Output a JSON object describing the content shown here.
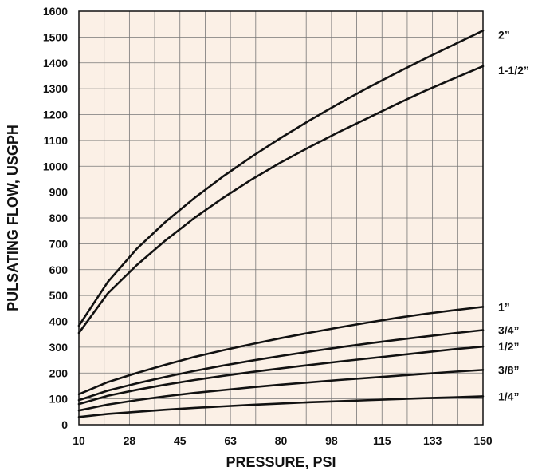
{
  "chart_data": {
    "type": "line",
    "title": "",
    "xlabel": "PRESSURE, PSI",
    "ylabel": "PULSATING FLOW, USGPH",
    "xlim": [
      10,
      150
    ],
    "ylim": [
      0,
      1600
    ],
    "x_tick_labels": [
      "10",
      "28",
      "45",
      "63",
      "80",
      "98",
      "115",
      "133",
      "150"
    ],
    "y_tick_labels": [
      "0",
      "100",
      "200",
      "300",
      "400",
      "500",
      "600",
      "700",
      "800",
      "900",
      "1000",
      "1100",
      "1200",
      "1300",
      "1400",
      "1500",
      "1600"
    ],
    "grid": true,
    "legend": "labels at right end of lines",
    "colors": {
      "plot_background": "#fbf0e6",
      "grid": "#777777",
      "line": "#111111"
    },
    "x": [
      10,
      20,
      30,
      40,
      50,
      60,
      70,
      80,
      90,
      100,
      110,
      120,
      130,
      140,
      150
    ],
    "series": [
      {
        "name": "2”",
        "values": [
          383,
          552,
          680,
          785,
          877,
          961,
          1038,
          1110,
          1178,
          1242,
          1303,
          1361,
          1417,
          1471,
          1525
        ]
      },
      {
        "name": "1-1/2”",
        "values": [
          355,
          508,
          617,
          713,
          800,
          878,
          950,
          1015,
          1075,
          1132,
          1186,
          1240,
          1292,
          1340,
          1387
        ]
      },
      {
        "name": "1”",
        "values": [
          118,
          165,
          200,
          232,
          262,
          288,
          312,
          335,
          356,
          376,
          395,
          413,
          429,
          443,
          456
        ]
      },
      {
        "name": "3/4”",
        "values": [
          95,
          132,
          160,
          185,
          208,
          229,
          248,
          266,
          283,
          299,
          314,
          328,
          341,
          354,
          366
        ]
      },
      {
        "name": "1/2”",
        "values": [
          80,
          112,
          135,
          155,
          173,
          189,
          204,
          218,
          231,
          244,
          256,
          268,
          280,
          292,
          302
        ]
      },
      {
        "name": "3/8”",
        "values": [
          55,
          78,
          95,
          110,
          123,
          134,
          145,
          155,
          164,
          173,
          181,
          189,
          197,
          205,
          212
        ]
      },
      {
        "name": "1/4”",
        "values": [
          30,
          42,
          50,
          58,
          65,
          71,
          77,
          82,
          87,
          91,
          95,
          99,
          103,
          106,
          110
        ]
      }
    ]
  }
}
